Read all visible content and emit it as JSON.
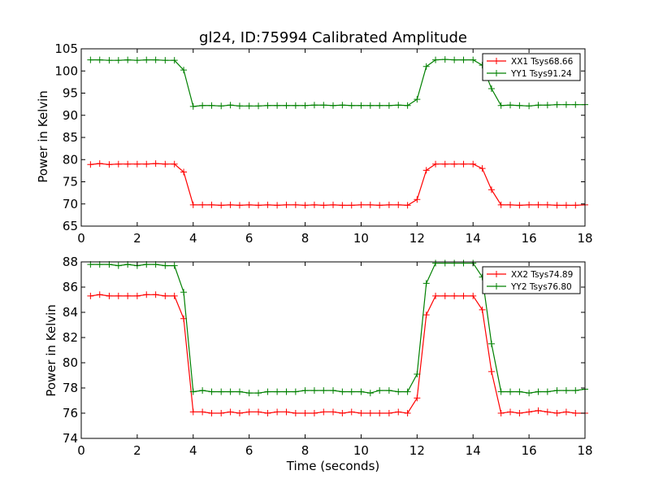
{
  "chart_data": [
    {
      "type": "line",
      "title": "gl24, ID:75994 Calibrated Amplitude",
      "xlabel": "",
      "ylabel": "Power in Kelvin",
      "xlim": [
        0,
        18
      ],
      "ylim": [
        65,
        105
      ],
      "xticks": [
        0,
        2,
        4,
        6,
        8,
        10,
        12,
        14,
        16,
        18
      ],
      "yticks": [
        65,
        70,
        75,
        80,
        85,
        90,
        95,
        100,
        105
      ],
      "legend_position": "top-right",
      "x": [
        0.33,
        0.66,
        1.0,
        1.33,
        1.66,
        2.0,
        2.33,
        2.66,
        3.0,
        3.33,
        3.66,
        4.0,
        4.33,
        4.66,
        5.0,
        5.33,
        5.66,
        6.0,
        6.33,
        6.66,
        7.0,
        7.33,
        7.66,
        8.0,
        8.33,
        8.66,
        9.0,
        9.33,
        9.66,
        10.0,
        10.33,
        10.66,
        11.0,
        11.33,
        11.66,
        12.0,
        12.33,
        12.66,
        13.0,
        13.33,
        13.66,
        14.0,
        14.33,
        14.66,
        15.0,
        15.33,
        15.66,
        16.0,
        16.33,
        16.66,
        17.0,
        17.33,
        17.66,
        18.0
      ],
      "series": [
        {
          "name": "XX1 Tsys68.66",
          "color": "#ff0000",
          "values": [
            78.9,
            79.1,
            78.9,
            79.0,
            79.0,
            79.0,
            79.0,
            79.1,
            79.0,
            79.0,
            77.2,
            69.8,
            69.8,
            69.8,
            69.7,
            69.8,
            69.7,
            69.8,
            69.7,
            69.8,
            69.7,
            69.8,
            69.8,
            69.7,
            69.8,
            69.7,
            69.8,
            69.7,
            69.7,
            69.8,
            69.8,
            69.7,
            69.8,
            69.8,
            69.7,
            71.0,
            77.6,
            79.0,
            79.0,
            79.0,
            79.0,
            79.0,
            78.0,
            73.2,
            69.8,
            69.8,
            69.7,
            69.8,
            69.8,
            69.8,
            69.7,
            69.7,
            69.7,
            69.8
          ]
        },
        {
          "name": "YY1 Tsys91.24",
          "color": "#008000",
          "values": [
            102.5,
            102.5,
            102.4,
            102.4,
            102.5,
            102.4,
            102.5,
            102.5,
            102.4,
            102.4,
            100.2,
            92.0,
            92.2,
            92.2,
            92.1,
            92.3,
            92.1,
            92.1,
            92.1,
            92.2,
            92.2,
            92.2,
            92.2,
            92.2,
            92.3,
            92.3,
            92.2,
            92.3,
            92.2,
            92.2,
            92.2,
            92.2,
            92.2,
            92.3,
            92.2,
            93.6,
            101.0,
            102.5,
            102.6,
            102.5,
            102.5,
            102.5,
            101.3,
            96.0,
            92.2,
            92.3,
            92.2,
            92.1,
            92.3,
            92.3,
            92.4,
            92.4,
            92.4,
            92.4
          ]
        }
      ]
    },
    {
      "type": "line",
      "title": "",
      "xlabel": "Time (seconds)",
      "ylabel": "Power in Kelvin",
      "xlim": [
        0,
        18
      ],
      "ylim": [
        74,
        88
      ],
      "xticks": [
        0,
        2,
        4,
        6,
        8,
        10,
        12,
        14,
        16,
        18
      ],
      "yticks": [
        74,
        76,
        78,
        80,
        82,
        84,
        86,
        88
      ],
      "legend_position": "top-right",
      "x": [
        0.33,
        0.66,
        1.0,
        1.33,
        1.66,
        2.0,
        2.33,
        2.66,
        3.0,
        3.33,
        3.66,
        4.0,
        4.33,
        4.66,
        5.0,
        5.33,
        5.66,
        6.0,
        6.33,
        6.66,
        7.0,
        7.33,
        7.66,
        8.0,
        8.33,
        8.66,
        9.0,
        9.33,
        9.66,
        10.0,
        10.33,
        10.66,
        11.0,
        11.33,
        11.66,
        12.0,
        12.33,
        12.66,
        13.0,
        13.33,
        13.66,
        14.0,
        14.33,
        14.66,
        15.0,
        15.33,
        15.66,
        16.0,
        16.33,
        16.66,
        17.0,
        17.33,
        17.66,
        18.0
      ],
      "series": [
        {
          "name": "XX2 Tsys74.89",
          "color": "#ff0000",
          "values": [
            85.3,
            85.4,
            85.3,
            85.3,
            85.3,
            85.3,
            85.4,
            85.4,
            85.3,
            85.3,
            83.5,
            76.1,
            76.1,
            76.0,
            76.0,
            76.1,
            76.0,
            76.1,
            76.1,
            76.0,
            76.1,
            76.1,
            76.0,
            76.0,
            76.0,
            76.1,
            76.1,
            76.0,
            76.1,
            76.0,
            76.0,
            76.0,
            76.0,
            76.1,
            76.0,
            77.2,
            83.8,
            85.3,
            85.3,
            85.3,
            85.3,
            85.3,
            84.2,
            79.3,
            76.0,
            76.1,
            76.0,
            76.1,
            76.2,
            76.1,
            76.0,
            76.1,
            76.0,
            76.0
          ]
        },
        {
          "name": "YY2 Tsys76.80",
          "color": "#008000",
          "values": [
            87.8,
            87.8,
            87.8,
            87.7,
            87.8,
            87.7,
            87.8,
            87.8,
            87.7,
            87.7,
            85.6,
            77.7,
            77.8,
            77.7,
            77.7,
            77.7,
            77.7,
            77.6,
            77.6,
            77.7,
            77.7,
            77.7,
            77.7,
            77.8,
            77.8,
            77.8,
            77.8,
            77.7,
            77.7,
            77.7,
            77.6,
            77.8,
            77.8,
            77.7,
            77.7,
            79.1,
            86.3,
            87.9,
            87.9,
            87.9,
            87.9,
            87.9,
            86.8,
            81.5,
            77.7,
            77.7,
            77.7,
            77.6,
            77.7,
            77.7,
            77.8,
            77.8,
            77.8,
            77.9
          ]
        }
      ]
    }
  ]
}
